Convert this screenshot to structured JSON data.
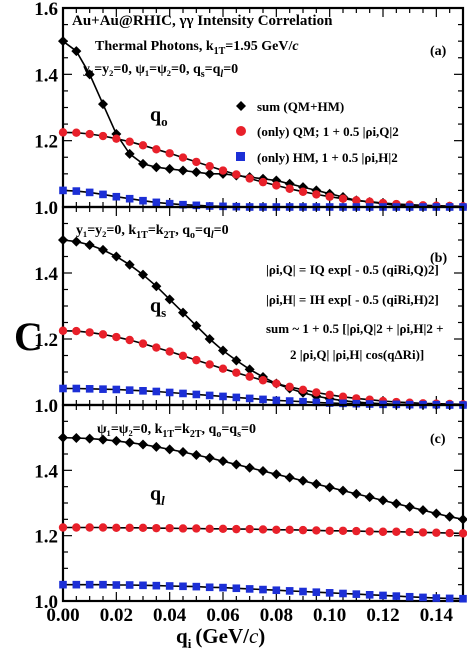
{
  "title": "Au+Au@RHIC, γγ Intensity Correlation",
  "ylabel": "C",
  "xlabel": "q",
  "xlabel_sub": "i",
  "xlabel_unit": "(GeV/",
  "xlabel_unit_italic": "c",
  "xlabel_unit_close": ")",
  "panel_a": {
    "tag": "(a)",
    "line1": "Thermal Photons, k",
    "line1_sub": "1T",
    "line1_rest": "=1.95 GeV/",
    "line1_italic": "c",
    "line2": "y₁=y₂=0,  ψ₁=ψ₂=0,  q",
    "line2_sub1": "s",
    "line2_mid": "=q",
    "line2_sub2": "l",
    "line2_end": "=0",
    "qlabel": "q",
    "qsub": "o"
  },
  "panel_b": {
    "tag": "(b)",
    "line1": "y₁=y₂=0, k",
    "line1_sub1": "1T",
    "line1_mid": "=k",
    "line1_sub2": "2T",
    "line1_rest": ", q",
    "line1_sub3": "o",
    "line1_rest2": "=q",
    "line1_sub4": "l",
    "line1_end": "=0",
    "qlabel": "q",
    "qsub": "s",
    "formula1": "|ρi,Q| = IQ exp[ - 0.5  (qiRi,Q)2]",
    "formula2": "|ρi,H| = IH exp[ - 0.5  (qiRi,H)2]",
    "formula3": "sum ~ 1 + 0.5 [|ρi,Q|2 + |ρi,H|2 +",
    "formula4": "2 |ρi,Q| |ρi,H| cos(qΔRi)]"
  },
  "panel_c": {
    "tag": "(c)",
    "line1": "ψ₁=ψ₂=0,  k",
    "line1_sub1": "1T",
    "line1_mid": "=k",
    "line1_sub2": "2T",
    "line1_rest": ", q",
    "line1_sub3": "o",
    "line1_rest2": "=q",
    "line1_sub4": "s",
    "line1_end": "=0",
    "qlabel": "q",
    "qsub": "l"
  },
  "legend": {
    "sum": "sum (QM+HM)",
    "qm": "(only) QM; 1 + 0.5 |ρi,Q|2",
    "hm": "(only) HM, 1 + 0.5 |ρi,H|2"
  },
  "colors": {
    "sum": "#000000",
    "qm": "#e8202a",
    "hm": "#1c2fd6"
  },
  "chart_data": [
    {
      "type": "scatter",
      "panel": "a",
      "xlim": [
        0,
        0.15
      ],
      "ylim": [
        1.0,
        1.6
      ],
      "xticks": [
        "0.00",
        "0.02",
        "0.04",
        "0.06",
        "0.08",
        "0.10",
        "0.12",
        "0.14"
      ],
      "yticks": [
        "1.0",
        "1.2",
        "1.4",
        "1.6"
      ],
      "series": [
        {
          "name": "sum (QM+HM)",
          "marker": "diamond",
          "x": [
            0.0,
            0.005,
            0.01,
            0.015,
            0.02,
            0.025,
            0.03,
            0.035,
            0.04,
            0.045,
            0.05,
            0.055,
            0.06,
            0.065,
            0.07,
            0.075,
            0.08,
            0.085,
            0.09,
            0.095,
            0.1,
            0.105,
            0.11,
            0.115,
            0.12,
            0.125,
            0.13,
            0.135,
            0.14,
            0.145,
            0.15
          ],
          "y": [
            1.5,
            1.47,
            1.4,
            1.31,
            1.22,
            1.16,
            1.13,
            1.12,
            1.115,
            1.11,
            1.105,
            1.1,
            1.1,
            1.095,
            1.09,
            1.085,
            1.08,
            1.07,
            1.06,
            1.05,
            1.04,
            1.03,
            1.02,
            1.015,
            1.01,
            1.005,
            1.005,
            1.002,
            1.002,
            1.001,
            1.0
          ]
        },
        {
          "name": "(only) QM",
          "marker": "circle",
          "x": [
            0.0,
            0.005,
            0.01,
            0.015,
            0.02,
            0.025,
            0.03,
            0.035,
            0.04,
            0.045,
            0.05,
            0.055,
            0.06,
            0.065,
            0.07,
            0.075,
            0.08,
            0.085,
            0.09,
            0.095,
            0.1,
            0.105,
            0.11,
            0.115,
            0.12,
            0.125,
            0.13,
            0.135,
            0.14,
            0.145,
            0.15
          ],
          "y": [
            1.225,
            1.224,
            1.22,
            1.214,
            1.206,
            1.197,
            1.186,
            1.174,
            1.162,
            1.149,
            1.136,
            1.123,
            1.11,
            1.098,
            1.086,
            1.075,
            1.065,
            1.055,
            1.046,
            1.038,
            1.031,
            1.025,
            1.02,
            1.016,
            1.012,
            1.009,
            1.007,
            1.005,
            1.004,
            1.003,
            1.002
          ]
        },
        {
          "name": "(only) HM",
          "marker": "square",
          "x": [
            0.0,
            0.005,
            0.01,
            0.015,
            0.02,
            0.025,
            0.03,
            0.035,
            0.04,
            0.045,
            0.05,
            0.055,
            0.06,
            0.065,
            0.07,
            0.075,
            0.08,
            0.085,
            0.09,
            0.095,
            0.1,
            0.105,
            0.11,
            0.115,
            0.12,
            0.125,
            0.13,
            0.135,
            0.14,
            0.145,
            0.15
          ],
          "y": [
            1.05,
            1.048,
            1.044,
            1.038,
            1.031,
            1.025,
            1.019,
            1.014,
            1.01,
            1.007,
            1.005,
            1.003,
            1.002,
            1.001,
            1.0,
            1.0,
            1.0,
            1.0,
            1.0,
            1.0,
            1.0,
            1.0,
            1.0,
            1.0,
            1.0,
            1.0,
            1.0,
            1.0,
            1.0,
            1.0,
            1.0
          ]
        }
      ]
    },
    {
      "type": "scatter",
      "panel": "b",
      "xlim": [
        0,
        0.15
      ],
      "ylim": [
        1.0,
        1.6
      ],
      "xticks": [
        "0.00",
        "0.02",
        "0.04",
        "0.06",
        "0.08",
        "0.10",
        "0.12",
        "0.14"
      ],
      "yticks": [
        "1.0",
        "1.2",
        "1.4"
      ],
      "series": [
        {
          "name": "sum (QM+HM)",
          "marker": "diamond",
          "x": [
            0.0,
            0.005,
            0.01,
            0.015,
            0.02,
            0.025,
            0.03,
            0.035,
            0.04,
            0.045,
            0.05,
            0.055,
            0.06,
            0.065,
            0.07,
            0.075,
            0.08,
            0.085,
            0.09,
            0.095,
            0.1,
            0.105,
            0.11,
            0.115,
            0.12,
            0.125,
            0.13,
            0.135,
            0.14,
            0.145,
            0.15
          ],
          "y": [
            1.5,
            1.495,
            1.485,
            1.47,
            1.45,
            1.425,
            1.395,
            1.36,
            1.32,
            1.28,
            1.24,
            1.2,
            1.165,
            1.135,
            1.108,
            1.085,
            1.065,
            1.05,
            1.037,
            1.027,
            1.019,
            1.013,
            1.009,
            1.006,
            1.004,
            1.002,
            1.001,
            1.001,
            1.0,
            1.0,
            1.0
          ]
        },
        {
          "name": "(only) QM",
          "marker": "circle",
          "x": [
            0.0,
            0.005,
            0.01,
            0.015,
            0.02,
            0.025,
            0.03,
            0.035,
            0.04,
            0.045,
            0.05,
            0.055,
            0.06,
            0.065,
            0.07,
            0.075,
            0.08,
            0.085,
            0.09,
            0.095,
            0.1,
            0.105,
            0.11,
            0.115,
            0.12,
            0.125,
            0.13,
            0.135,
            0.14,
            0.145,
            0.15
          ],
          "y": [
            1.225,
            1.224,
            1.22,
            1.214,
            1.206,
            1.197,
            1.186,
            1.174,
            1.162,
            1.149,
            1.136,
            1.123,
            1.11,
            1.098,
            1.086,
            1.075,
            1.065,
            1.055,
            1.046,
            1.038,
            1.031,
            1.025,
            1.02,
            1.016,
            1.012,
            1.009,
            1.007,
            1.005,
            1.004,
            1.003,
            1.002
          ]
        },
        {
          "name": "(only) HM",
          "marker": "square",
          "x": [
            0.0,
            0.005,
            0.01,
            0.015,
            0.02,
            0.025,
            0.03,
            0.035,
            0.04,
            0.045,
            0.05,
            0.055,
            0.06,
            0.065,
            0.07,
            0.075,
            0.08,
            0.085,
            0.09,
            0.095,
            0.1,
            0.105,
            0.11,
            0.115,
            0.12,
            0.125,
            0.13,
            0.135,
            0.14,
            0.145,
            0.15
          ],
          "y": [
            1.05,
            1.05,
            1.049,
            1.048,
            1.047,
            1.045,
            1.043,
            1.041,
            1.038,
            1.035,
            1.032,
            1.029,
            1.026,
            1.023,
            1.02,
            1.017,
            1.014,
            1.012,
            1.01,
            1.008,
            1.006,
            1.005,
            1.004,
            1.003,
            1.002,
            1.002,
            1.001,
            1.001,
            1.001,
            1.0,
            1.0
          ]
        }
      ]
    },
    {
      "type": "scatter",
      "panel": "c",
      "xlim": [
        0,
        0.15
      ],
      "ylim": [
        1.0,
        1.6
      ],
      "xticks": [
        "0.00",
        "0.02",
        "0.04",
        "0.06",
        "0.08",
        "0.10",
        "0.12",
        "0.14"
      ],
      "yticks": [
        "1.0",
        "1.2",
        "1.4"
      ],
      "series": [
        {
          "name": "sum (QM+HM)",
          "marker": "diamond",
          "x": [
            0.0,
            0.005,
            0.01,
            0.015,
            0.02,
            0.025,
            0.03,
            0.035,
            0.04,
            0.045,
            0.05,
            0.055,
            0.06,
            0.065,
            0.07,
            0.075,
            0.08,
            0.085,
            0.09,
            0.095,
            0.1,
            0.105,
            0.11,
            0.115,
            0.12,
            0.125,
            0.13,
            0.135,
            0.14,
            0.145,
            0.15
          ],
          "y": [
            1.5,
            1.499,
            1.497,
            1.494,
            1.49,
            1.485,
            1.479,
            1.472,
            1.464,
            1.456,
            1.447,
            1.438,
            1.428,
            1.418,
            1.408,
            1.398,
            1.388,
            1.378,
            1.368,
            1.358,
            1.348,
            1.338,
            1.328,
            1.318,
            1.308,
            1.298,
            1.288,
            1.278,
            1.268,
            1.258,
            1.25
          ]
        },
        {
          "name": "(only) QM",
          "marker": "circle",
          "x": [
            0.0,
            0.005,
            0.01,
            0.015,
            0.02,
            0.025,
            0.03,
            0.035,
            0.04,
            0.045,
            0.05,
            0.055,
            0.06,
            0.065,
            0.07,
            0.075,
            0.08,
            0.085,
            0.09,
            0.095,
            0.1,
            0.105,
            0.11,
            0.115,
            0.12,
            0.125,
            0.13,
            0.135,
            0.14,
            0.145,
            0.15
          ],
          "y": [
            1.225,
            1.225,
            1.225,
            1.225,
            1.224,
            1.224,
            1.224,
            1.223,
            1.223,
            1.222,
            1.222,
            1.221,
            1.221,
            1.22,
            1.22,
            1.219,
            1.218,
            1.218,
            1.217,
            1.216,
            1.215,
            1.215,
            1.214,
            1.213,
            1.212,
            1.212,
            1.211,
            1.21,
            1.209,
            1.208,
            1.207
          ]
        },
        {
          "name": "(only) HM",
          "marker": "square",
          "x": [
            0.0,
            0.005,
            0.01,
            0.015,
            0.02,
            0.025,
            0.03,
            0.035,
            0.04,
            0.045,
            0.05,
            0.055,
            0.06,
            0.065,
            0.07,
            0.075,
            0.08,
            0.085,
            0.09,
            0.095,
            0.1,
            0.105,
            0.11,
            0.115,
            0.12,
            0.125,
            0.13,
            0.135,
            0.14,
            0.145,
            0.15
          ],
          "y": [
            1.05,
            1.05,
            1.05,
            1.05,
            1.049,
            1.049,
            1.048,
            1.047,
            1.046,
            1.045,
            1.044,
            1.042,
            1.041,
            1.039,
            1.037,
            1.035,
            1.033,
            1.031,
            1.029,
            1.027,
            1.025,
            1.023,
            1.021,
            1.019,
            1.017,
            1.015,
            1.013,
            1.011,
            1.009,
            1.008,
            1.007
          ]
        }
      ]
    }
  ]
}
